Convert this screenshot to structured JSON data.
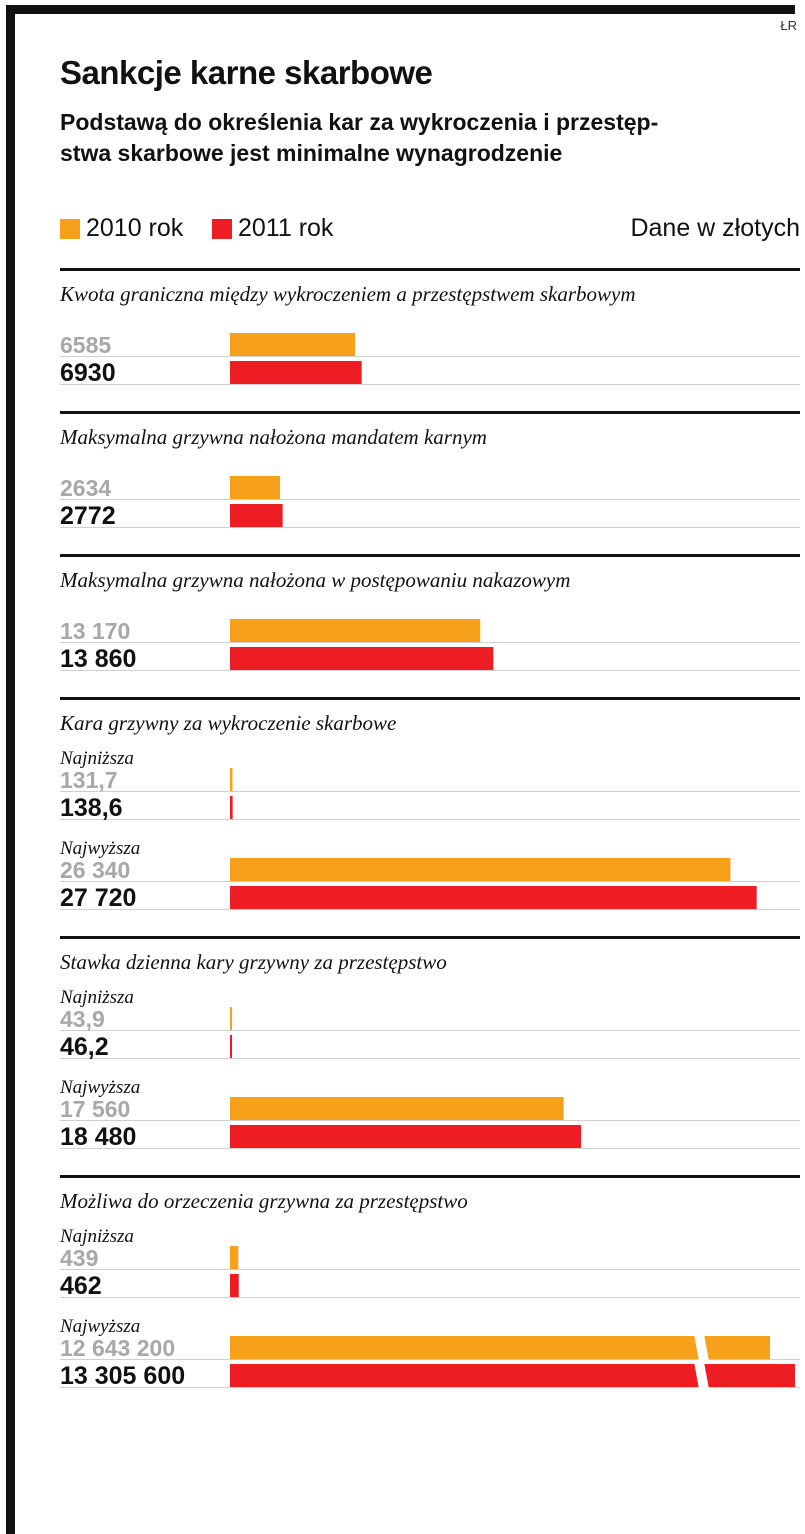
{
  "credit": "ŁR",
  "colors": {
    "y2010": "#f7a11a",
    "y2011": "#ee1d24",
    "frame": "#111111",
    "label2010": "#a8a8a8"
  },
  "legend": {
    "label2010": "2010 rok",
    "label2011": "2011 rok",
    "units": "Dane w złotych"
  },
  "chart_data": {
    "type": "bar",
    "orientation": "horizontal",
    "title": "Sankcje karne skarbowe",
    "subtitle": "Podstawą do określenia kar za wykroczenia i przestęp-stwa skarbowe jest minimalne wynagrodzenie",
    "units": "Dane w złotych",
    "series_names": [
      "2010 rok",
      "2011 rok"
    ],
    "scale_note": "Bars share a linear scale except the final broken bars, which are truncated.",
    "sections": [
      {
        "title": "Kwota graniczna między wykroczeniem a przestępstwem skarbowym",
        "groups": [
          {
            "label": "",
            "values": [
              {
                "series": "2010 rok",
                "value": 6585,
                "label": "6585"
              },
              {
                "series": "2011 rok",
                "value": 6930,
                "label": "6930"
              }
            ]
          }
        ]
      },
      {
        "title": "Maksymalna grzywna nałożona mandatem karnym",
        "groups": [
          {
            "label": "",
            "values": [
              {
                "series": "2010 rok",
                "value": 2634,
                "label": "2634"
              },
              {
                "series": "2011 rok",
                "value": 2772,
                "label": "2772"
              }
            ]
          }
        ]
      },
      {
        "title": "Maksymalna grzywna nałożona w postępowaniu nakazowym",
        "groups": [
          {
            "label": "",
            "values": [
              {
                "series": "2010 rok",
                "value": 13170,
                "label": "13 170"
              },
              {
                "series": "2011 rok",
                "value": 13860,
                "label": "13 860"
              }
            ]
          }
        ]
      },
      {
        "title": "Kara grzywny za wykroczenie skarbowe",
        "groups": [
          {
            "label": "Najniższa",
            "values": [
              {
                "series": "2010 rok",
                "value": 131.7,
                "label": "131,7"
              },
              {
                "series": "2011 rok",
                "value": 138.6,
                "label": "138,6"
              }
            ]
          },
          {
            "label": "Najwyższa",
            "values": [
              {
                "series": "2010 rok",
                "value": 26340,
                "label": "26 340"
              },
              {
                "series": "2011 rok",
                "value": 27720,
                "label": "27 720"
              }
            ]
          }
        ]
      },
      {
        "title": "Stawka dzienna kary grzywny za przestępstwo",
        "groups": [
          {
            "label": "Najniższa",
            "values": [
              {
                "series": "2010 rok",
                "value": 43.9,
                "label": "43,9"
              },
              {
                "series": "2011 rok",
                "value": 46.2,
                "label": "46,2"
              }
            ]
          },
          {
            "label": "Najwyższa",
            "values": [
              {
                "series": "2010 rok",
                "value": 17560,
                "label": "17 560"
              },
              {
                "series": "2011 rok",
                "value": 18480,
                "label": "18 480"
              }
            ]
          }
        ]
      },
      {
        "title": "Możliwa do orzeczenia grzywna za przestępstwo",
        "groups": [
          {
            "label": "Najniższa",
            "values": [
              {
                "series": "2010 rok",
                "value": 439,
                "label": "439"
              },
              {
                "series": "2011 rok",
                "value": 462,
                "label": "462"
              }
            ]
          },
          {
            "label": "Najwyższa",
            "broken_axis": true,
            "values": [
              {
                "series": "2010 rok",
                "value": 12643200,
                "label": "12 643 200"
              },
              {
                "series": "2011 rok",
                "value": 13305600,
                "label": "13 305 600"
              }
            ]
          }
        ]
      }
    ]
  }
}
